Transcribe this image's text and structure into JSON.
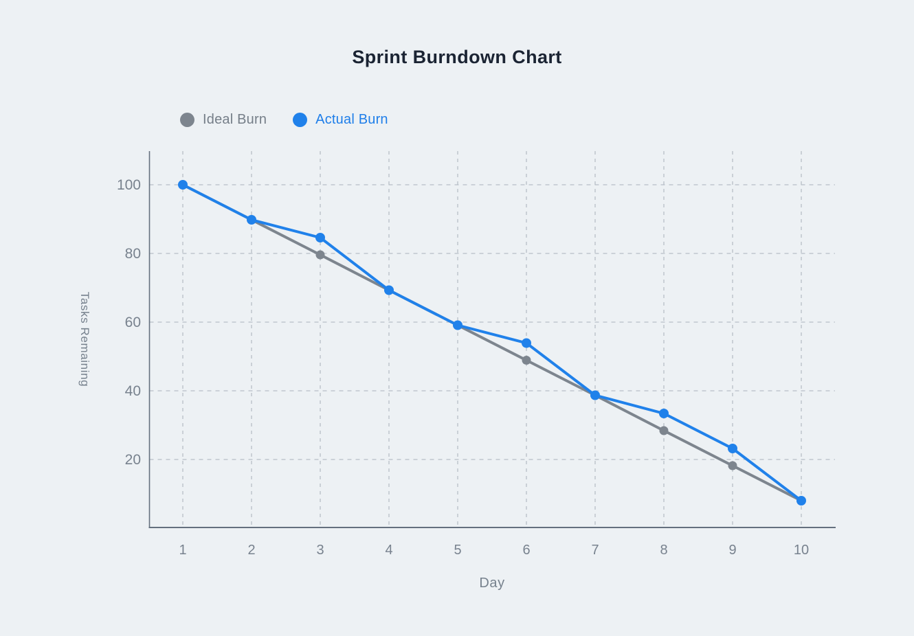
{
  "page": {
    "background": "#edf1f4"
  },
  "chart_data": {
    "type": "line",
    "title": "Sprint Burndown Chart",
    "xlabel": "Day",
    "ylabel": "Tasks Remaining",
    "categories": [
      "1",
      "2",
      "3",
      "4",
      "5",
      "6",
      "7",
      "8",
      "9",
      "10"
    ],
    "y_ticks": [
      20,
      40,
      60,
      80,
      100
    ],
    "ylim": [
      0,
      110
    ],
    "grid": {
      "horizontal": true,
      "vertical": true,
      "style": "dashed"
    },
    "legend_position": "top-left",
    "series": [
      {
        "name": "Ideal Burn",
        "color": "#7d858e",
        "label_color": "#757e88",
        "values": [
          100,
          89.8,
          79.6,
          69.3,
          59.1,
          48.9,
          38.7,
          28.4,
          18.2,
          8
        ]
      },
      {
        "name": "Actual Burn",
        "color": "#2081ea",
        "label_color": "#1e7ee9",
        "values": [
          100,
          89.8,
          84.6,
          69.3,
          59.1,
          53.9,
          38.7,
          33.4,
          23.2,
          8
        ]
      }
    ]
  },
  "colors": {
    "title": "#1b2433",
    "axis_line": "#64707e",
    "grid_line": "#b7bec6",
    "tick_label": "#78828e",
    "axis_title": "#76818d"
  }
}
